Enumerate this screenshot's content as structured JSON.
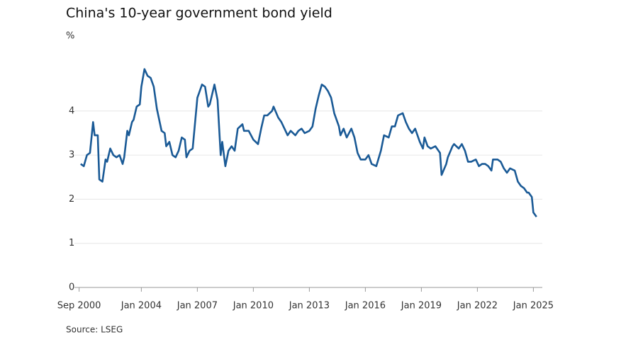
{
  "chart_data": {
    "type": "line",
    "title": "China's 10-year government bond yield",
    "y_axis_label": "%",
    "source": "Source: LSEG",
    "x": [
      "2000-10",
      "2000-12",
      "2001-02",
      "2001-04",
      "2001-06",
      "2001-07",
      "2001-09",
      "2001-10",
      "2001-12",
      "2002-02",
      "2002-03",
      "2002-05",
      "2002-07",
      "2002-09",
      "2002-11",
      "2003-01",
      "2003-02",
      "2003-04",
      "2003-05",
      "2003-07",
      "2003-08",
      "2003-10",
      "2003-12",
      "2004-01",
      "2004-03",
      "2004-05",
      "2004-07",
      "2004-09",
      "2004-11",
      "2005-02",
      "2005-04",
      "2005-05",
      "2005-07",
      "2005-09",
      "2005-11",
      "2006-01",
      "2006-03",
      "2006-05",
      "2006-06",
      "2006-08",
      "2006-10",
      "2007-01",
      "2007-02",
      "2007-04",
      "2007-06",
      "2007-08",
      "2007-09",
      "2007-12",
      "2008-02",
      "2008-04",
      "2008-05",
      "2008-07",
      "2008-09",
      "2008-11",
      "2009-01",
      "2009-03",
      "2009-06",
      "2009-07",
      "2009-10",
      "2010-01",
      "2010-04",
      "2010-06",
      "2010-08",
      "2010-10",
      "2011-01",
      "2011-02",
      "2011-05",
      "2011-07",
      "2011-09",
      "2011-11",
      "2012-01",
      "2012-04",
      "2012-06",
      "2012-08",
      "2012-10",
      "2013-01",
      "2013-03",
      "2013-05",
      "2013-07",
      "2013-09",
      "2013-11",
      "2014-01",
      "2014-03",
      "2014-05",
      "2014-08",
      "2014-09",
      "2014-11",
      "2015-01",
      "2015-04",
      "2015-06",
      "2015-08",
      "2015-10",
      "2016-01",
      "2016-03",
      "2016-05",
      "2016-08",
      "2016-11",
      "2017-01",
      "2017-04",
      "2017-06",
      "2017-08",
      "2017-10",
      "2018-01",
      "2018-03",
      "2018-05",
      "2018-07",
      "2018-09",
      "2018-12",
      "2019-02",
      "2019-03",
      "2019-05",
      "2019-07",
      "2019-10",
      "2020-01",
      "2020-02",
      "2020-05",
      "2020-06",
      "2020-09",
      "2020-10",
      "2021-01",
      "2021-03",
      "2021-05",
      "2021-07",
      "2021-09",
      "2021-12",
      "2022-02",
      "2022-04",
      "2022-06",
      "2022-08",
      "2022-10",
      "2022-11",
      "2023-02",
      "2023-04",
      "2023-06",
      "2023-08",
      "2023-10",
      "2024-01",
      "2024-03",
      "2024-05",
      "2024-07",
      "2024-09",
      "2024-10",
      "2024-12",
      "2025-01",
      "2025-03"
    ],
    "series": [
      {
        "name": "China 10-year yield",
        "color": "#1a5a96",
        "values": [
          2.8,
          2.75,
          3.0,
          3.05,
          3.75,
          3.45,
          3.45,
          2.45,
          2.4,
          2.9,
          2.85,
          3.15,
          3.0,
          2.95,
          3.0,
          2.8,
          2.95,
          3.55,
          3.45,
          3.75,
          3.8,
          4.1,
          4.15,
          4.55,
          4.95,
          4.8,
          4.75,
          4.55,
          4.05,
          3.55,
          3.5,
          3.2,
          3.3,
          3.0,
          2.95,
          3.1,
          3.4,
          3.35,
          2.95,
          3.1,
          3.15,
          4.3,
          4.4,
          4.6,
          4.55,
          4.1,
          4.15,
          4.6,
          4.25,
          3.0,
          3.3,
          2.75,
          3.1,
          3.2,
          3.1,
          3.6,
          3.7,
          3.55,
          3.55,
          3.35,
          3.25,
          3.6,
          3.9,
          3.9,
          4.0,
          4.1,
          3.85,
          3.75,
          3.6,
          3.45,
          3.55,
          3.45,
          3.55,
          3.6,
          3.5,
          3.55,
          3.65,
          4.05,
          4.35,
          4.6,
          4.55,
          4.45,
          4.3,
          3.95,
          3.65,
          3.45,
          3.6,
          3.4,
          3.6,
          3.4,
          3.05,
          2.9,
          2.9,
          3.0,
          2.8,
          2.75,
          3.1,
          3.45,
          3.4,
          3.65,
          3.65,
          3.9,
          3.95,
          3.75,
          3.6,
          3.5,
          3.6,
          3.3,
          3.15,
          3.4,
          3.2,
          3.15,
          3.2,
          3.05,
          2.55,
          2.8,
          2.95,
          3.2,
          3.25,
          3.15,
          3.25,
          3.1,
          2.85,
          2.85,
          2.9,
          2.75,
          2.8,
          2.8,
          2.75,
          2.65,
          2.9,
          2.9,
          2.85,
          2.7,
          2.6,
          2.7,
          2.65,
          2.4,
          2.3,
          2.25,
          2.15,
          2.15,
          2.05,
          1.7,
          1.6
        ]
      }
    ],
    "xlim": [
      "2000-06",
      "2025-04"
    ],
    "xticks": [
      {
        "value": "2000-09",
        "label": "Sep 2000"
      },
      {
        "value": "2004-01",
        "label": "Jan 2004"
      },
      {
        "value": "2007-01",
        "label": "Jan 2007"
      },
      {
        "value": "2010-01",
        "label": "Jan 2010"
      },
      {
        "value": "2013-01",
        "label": "Jan 2013"
      },
      {
        "value": "2016-01",
        "label": "Jan 2016"
      },
      {
        "value": "2019-01",
        "label": "Jan 2019"
      },
      {
        "value": "2022-01",
        "label": "Jan 2022"
      },
      {
        "value": "2025-01",
        "label": "Jan 2025"
      }
    ],
    "ylim": [
      0,
      5
    ],
    "yticks": [
      0,
      1,
      2,
      3,
      4
    ],
    "grid": true
  }
}
